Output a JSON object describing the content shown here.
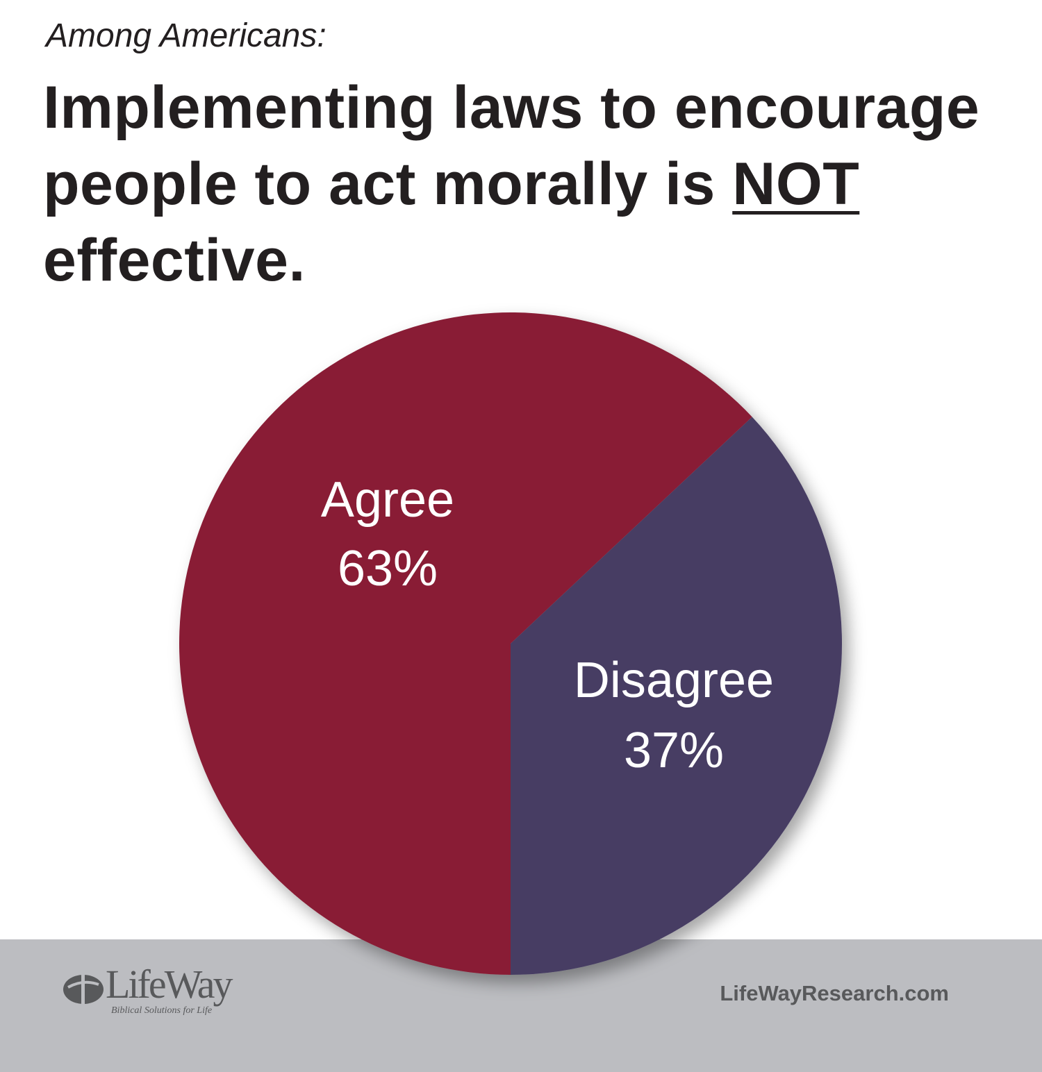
{
  "header": {
    "subtitle": "Among Americans:",
    "title_pre": "Implementing laws to encourage people to act morally is ",
    "title_emph": "NOT",
    "title_post": " effective."
  },
  "chart_data": {
    "type": "pie",
    "title": "Implementing laws to encourage people to act morally is NOT effective.",
    "slices": [
      {
        "label": "Agree",
        "value": 63,
        "value_label": "63%",
        "color": "#891f36"
      },
      {
        "label": "Disagree",
        "value": 37,
        "value_label": "37%",
        "color": "#463d63"
      }
    ]
  },
  "footer": {
    "logo_text": "LifeWay",
    "logo_tagline": "Biblical Solutions for Life",
    "url": "LifeWayResearch.com",
    "background": "#bcbdc1"
  }
}
